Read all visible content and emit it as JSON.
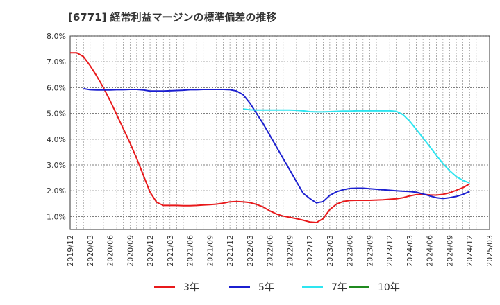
{
  "chart_data": {
    "type": "line",
    "title": "[6771]  経常利益マージンの標準偏差の推移",
    "xlabel": "",
    "ylabel": "",
    "ylim": [
      0.5,
      8.0
    ],
    "y_ticks": [
      "1.0%",
      "2.0%",
      "3.0%",
      "4.0%",
      "5.0%",
      "6.0%",
      "7.0%",
      "8.0%"
    ],
    "y_tick_values": [
      1,
      2,
      3,
      4,
      5,
      6,
      7,
      8
    ],
    "x_ticks": [
      "2019/12",
      "2020/03",
      "2020/06",
      "2020/09",
      "2020/12",
      "2021/03",
      "2021/06",
      "2021/09",
      "2021/12",
      "2022/03",
      "2022/06",
      "2022/09",
      "2022/12",
      "2023/03",
      "2023/06",
      "2023/09",
      "2023/12",
      "2024/03",
      "2024/06",
      "2024/09",
      "2024/12",
      "2025/03"
    ],
    "grid": true,
    "legend_position": "bottom",
    "series": [
      {
        "name": "3年",
        "color": "#e8191b",
        "x": [
          "2019/12",
          "2020/01",
          "2020/02",
          "2020/03",
          "2020/04",
          "2020/05",
          "2020/06",
          "2020/07",
          "2020/08",
          "2020/09",
          "2020/10",
          "2020/11",
          "2020/12",
          "2021/01",
          "2021/02",
          "2021/03",
          "2021/04",
          "2021/05",
          "2021/06",
          "2021/07",
          "2021/08",
          "2021/09",
          "2021/10",
          "2021/11",
          "2021/12",
          "2022/01",
          "2022/02",
          "2022/03",
          "2022/04",
          "2022/05",
          "2022/06",
          "2022/07",
          "2022/08",
          "2022/09",
          "2022/10",
          "2022/11",
          "2022/12",
          "2023/01",
          "2023/02",
          "2023/03",
          "2023/04",
          "2023/05",
          "2023/06",
          "2023/07",
          "2023/08",
          "2023/09",
          "2023/10",
          "2023/11",
          "2023/12",
          "2024/01",
          "2024/02",
          "2024/03",
          "2024/04",
          "2024/05",
          "2024/06",
          "2024/07",
          "2024/08",
          "2024/09",
          "2024/10",
          "2024/11",
          "2024/12"
        ],
        "values": [
          7.35,
          7.35,
          7.2,
          6.85,
          6.45,
          6.0,
          5.5,
          4.95,
          4.4,
          3.85,
          3.25,
          2.6,
          1.95,
          1.55,
          1.43,
          1.43,
          1.43,
          1.42,
          1.42,
          1.43,
          1.45,
          1.46,
          1.48,
          1.52,
          1.57,
          1.58,
          1.57,
          1.54,
          1.47,
          1.37,
          1.22,
          1.1,
          1.02,
          0.97,
          0.92,
          0.86,
          0.79,
          0.77,
          0.92,
          1.27,
          1.48,
          1.58,
          1.62,
          1.63,
          1.63,
          1.63,
          1.64,
          1.65,
          1.67,
          1.69,
          1.73,
          1.8,
          1.85,
          1.86,
          1.84,
          1.83,
          1.86,
          1.92,
          2.02,
          2.12,
          2.27
        ]
      },
      {
        "name": "5年",
        "color": "#1b1fd0",
        "x": [
          "2020/02",
          "2020/03",
          "2020/04",
          "2020/05",
          "2020/06",
          "2020/07",
          "2020/08",
          "2020/09",
          "2020/10",
          "2020/11",
          "2020/12",
          "2021/01",
          "2021/02",
          "2021/03",
          "2021/04",
          "2021/05",
          "2021/06",
          "2021/07",
          "2021/08",
          "2021/09",
          "2021/10",
          "2021/11",
          "2021/12",
          "2022/01",
          "2022/02",
          "2022/03",
          "2022/04",
          "2022/05",
          "2022/06",
          "2022/07",
          "2022/08",
          "2022/09",
          "2022/10",
          "2022/11",
          "2022/12",
          "2023/01",
          "2023/02",
          "2023/03",
          "2023/04",
          "2023/05",
          "2023/06",
          "2023/07",
          "2023/08",
          "2023/09",
          "2023/10",
          "2023/11",
          "2023/12",
          "2024/01",
          "2024/02",
          "2024/03",
          "2024/04",
          "2024/05",
          "2024/06",
          "2024/07",
          "2024/08",
          "2024/09",
          "2024/10",
          "2024/11",
          "2024/12"
        ],
        "values": [
          5.96,
          5.92,
          5.91,
          5.91,
          5.91,
          5.92,
          5.92,
          5.93,
          5.93,
          5.91,
          5.87,
          5.87,
          5.87,
          5.88,
          5.89,
          5.9,
          5.92,
          5.92,
          5.93,
          5.93,
          5.93,
          5.93,
          5.92,
          5.87,
          5.72,
          5.4,
          5.0,
          4.6,
          4.15,
          3.7,
          3.25,
          2.8,
          2.35,
          1.9,
          1.7,
          1.53,
          1.58,
          1.82,
          1.96,
          2.04,
          2.09,
          2.1,
          2.1,
          2.08,
          2.06,
          2.04,
          2.02,
          2.0,
          1.98,
          1.97,
          1.94,
          1.88,
          1.8,
          1.73,
          1.7,
          1.73,
          1.78,
          1.86,
          1.97
        ]
      },
      {
        "name": "7年",
        "color": "#2ee5f0",
        "x": [
          "2022/02",
          "2022/03",
          "2022/04",
          "2022/05",
          "2022/06",
          "2022/07",
          "2022/08",
          "2022/09",
          "2022/10",
          "2022/11",
          "2022/12",
          "2023/01",
          "2023/02",
          "2023/03",
          "2023/04",
          "2023/05",
          "2023/06",
          "2023/07",
          "2023/08",
          "2023/09",
          "2023/10",
          "2023/11",
          "2023/12",
          "2024/01",
          "2024/02",
          "2024/03",
          "2024/04",
          "2024/05",
          "2024/06",
          "2024/07",
          "2024/08",
          "2024/09",
          "2024/10",
          "2024/11",
          "2024/12"
        ],
        "values": [
          5.17,
          5.14,
          5.13,
          5.13,
          5.13,
          5.13,
          5.13,
          5.13,
          5.12,
          5.1,
          5.07,
          5.06,
          5.06,
          5.07,
          5.08,
          5.09,
          5.09,
          5.1,
          5.1,
          5.1,
          5.1,
          5.1,
          5.1,
          5.08,
          4.95,
          4.7,
          4.38,
          4.05,
          3.72,
          3.38,
          3.05,
          2.78,
          2.55,
          2.4,
          2.3
        ]
      },
      {
        "name": "10年",
        "color": "#1f8a1f",
        "x": [],
        "values": []
      }
    ]
  }
}
